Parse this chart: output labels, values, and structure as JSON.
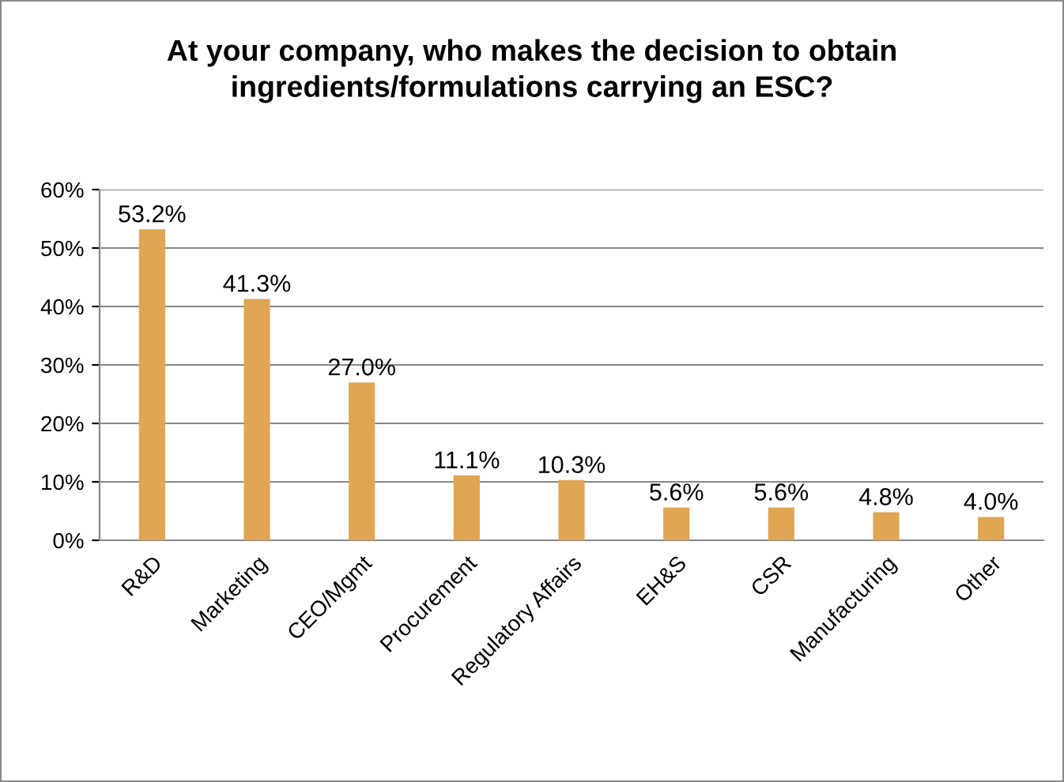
{
  "chart_data": {
    "type": "bar",
    "title": "At your company, who makes the decision to obtain\ningredients/formulations carrying an ESC?",
    "categories": [
      "R&D",
      "Marketing",
      "CEO/Mgmt",
      "Procurement",
      "Regulatory Affairs",
      "EH&S",
      "CSR",
      "Manufacturing",
      "Other"
    ],
    "values": [
      53.2,
      41.3,
      27.0,
      11.1,
      10.3,
      5.6,
      5.6,
      4.8,
      4.0
    ],
    "value_labels": [
      "53.2%",
      "41.3%",
      "27.0%",
      "11.1%",
      "10.3%",
      "5.6%",
      "5.6%",
      "4.8%",
      "4.0%"
    ],
    "color": "#e0a552",
    "ylim": [
      0,
      60
    ],
    "yticks": [
      {
        "value": 0,
        "label": "0%"
      },
      {
        "value": 10,
        "label": "10%"
      },
      {
        "value": 20,
        "label": "20%"
      },
      {
        "value": 30,
        "label": "30%"
      },
      {
        "value": 40,
        "label": "40%"
      },
      {
        "value": 50,
        "label": "50%"
      },
      {
        "value": 60,
        "label": "60%"
      }
    ],
    "grid": "y",
    "legend": false
  }
}
